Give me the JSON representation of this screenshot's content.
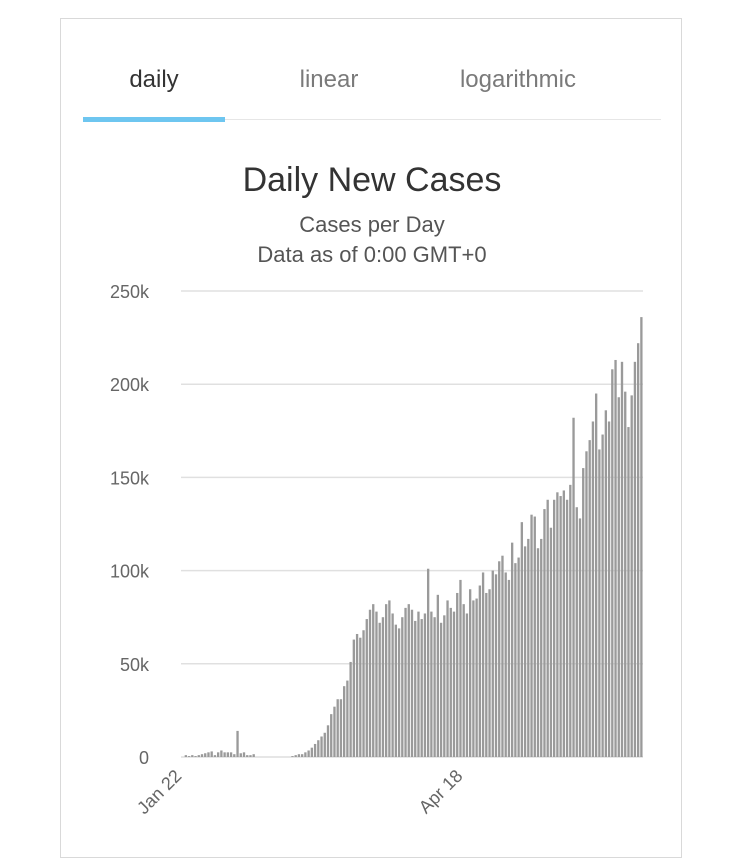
{
  "tabs": [
    {
      "label": "daily"
    },
    {
      "label": "linear"
    },
    {
      "label": "logarithmic"
    }
  ],
  "colors": {
    "accent": "#6ec6f0",
    "bar": "#9a9a9a",
    "grid": "#e0e0e0",
    "text": "#333333"
  },
  "chart_data": {
    "type": "bar",
    "title": "Daily New Cases",
    "subtitle": "Cases per Day",
    "subtitle2": "Data as of 0:00 GMT+0",
    "ylim": [
      0,
      250000
    ],
    "y_ticks": [
      0,
      50000,
      100000,
      150000,
      200000,
      250000
    ],
    "y_tick_labels": [
      "0",
      "50k",
      "100k",
      "150k",
      "200k",
      "250k"
    ],
    "x_tick_labels": [
      "Jan 22",
      "Apr 18"
    ],
    "grid": true,
    "series": [
      {
        "values": [
          0,
          1000,
          500,
          1000,
          500,
          1000,
          1500,
          2000,
          2500,
          3000,
          1000,
          2500,
          3500,
          2500,
          2500,
          2500,
          1500,
          14000,
          2000,
          2500,
          1000,
          1000,
          1500,
          0,
          0,
          0,
          0,
          0,
          0,
          0,
          0,
          0,
          0,
          0,
          500,
          1000,
          1500,
          1500,
          2500,
          3500,
          5000,
          7000,
          9000,
          11000,
          13000,
          17000,
          23000,
          27000,
          31000,
          31000,
          38000,
          41000,
          51000,
          63000,
          66000,
          64000,
          68000,
          74000,
          79000,
          82000,
          78000,
          72000,
          75000,
          82000,
          84000,
          77000,
          71000,
          69000,
          75000,
          80000,
          82000,
          79000,
          73000,
          78000,
          74000,
          77000,
          101000,
          78000,
          75000,
          87000,
          72000,
          76000,
          84000,
          80000,
          78000,
          88000,
          95000,
          82000,
          77000,
          90000,
          84000,
          85000,
          92000,
          99000,
          88000,
          90000,
          100000,
          98000,
          105000,
          108000,
          99000,
          95000,
          115000,
          104000,
          107000,
          126000,
          113000,
          117000,
          130000,
          129000,
          112000,
          117000,
          133000,
          138000,
          123000,
          138000,
          142000,
          140000,
          143000,
          138000,
          146000,
          182000,
          134000,
          128000,
          155000,
          164000,
          170000,
          180000,
          195000,
          165000,
          173000,
          186000,
          180000,
          208000,
          213000,
          193000,
          212000,
          196000,
          177000,
          194000,
          212000,
          222000,
          236000
        ]
      }
    ]
  }
}
